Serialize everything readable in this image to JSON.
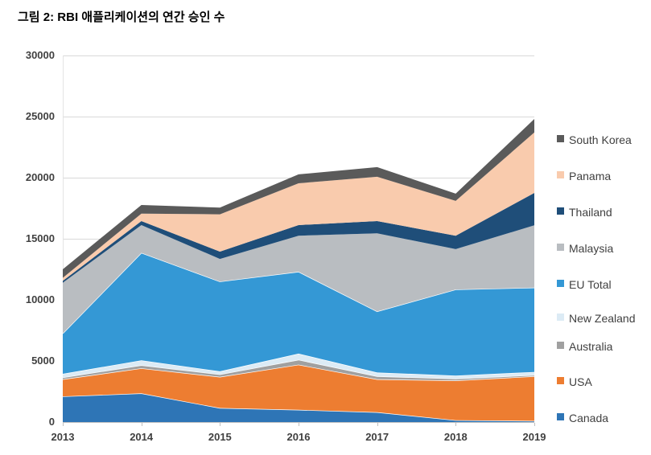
{
  "title": "그림 2: RBI 애플리케이션의 연간 승인 수",
  "chart_data": {
    "type": "area",
    "stacked": true,
    "title": "그림 2: RBI 애플리케이션의 연간 승인 수",
    "x": [
      "2013",
      "2014",
      "2015",
      "2016",
      "2017",
      "2018",
      "2019"
    ],
    "xlabel": "",
    "ylabel": "",
    "ylim": [
      0,
      30000
    ],
    "ytick_step": 5000,
    "yticks": [
      "0",
      "5000",
      "10000",
      "15000",
      "20000",
      "25000",
      "30000"
    ],
    "grid": "horizontal",
    "legend_position": "right",
    "stacking_order": "series listed bottom-to-top; legend shown top-to-bottom in reverse",
    "series": [
      {
        "name": "Canada",
        "color": "#2e75b6",
        "values": [
          2100,
          2350,
          1150,
          1000,
          800,
          150,
          100
        ]
      },
      {
        "name": "USA",
        "color": "#ed7d31",
        "values": [
          1400,
          2050,
          2550,
          3700,
          2700,
          3250,
          3650
        ]
      },
      {
        "name": "Australia",
        "color": "#a0a0a0",
        "values": [
          150,
          250,
          200,
          400,
          250,
          150,
          100
        ]
      },
      {
        "name": "New Zealand",
        "color": "#dcebf5",
        "values": [
          300,
          400,
          250,
          500,
          300,
          250,
          250
        ]
      },
      {
        "name": "EU Total",
        "color": "#3498d5",
        "values": [
          3300,
          8800,
          7350,
          6700,
          5000,
          7050,
          6900
        ]
      },
      {
        "name": "Malaysia",
        "color": "#b9bdc1",
        "values": [
          4150,
          2270,
          1850,
          2950,
          6400,
          3300,
          5100
        ]
      },
      {
        "name": "Thailand",
        "color": "#1f4e79",
        "values": [
          150,
          330,
          600,
          870,
          1000,
          1100,
          2650
        ]
      },
      {
        "name": "Panama",
        "color": "#f9cbad",
        "values": [
          250,
          610,
          3050,
          3420,
          3620,
          2850,
          4950
        ]
      },
      {
        "name": "South Korea",
        "color": "#5a5a5a",
        "values": [
          700,
          700,
          550,
          730,
          790,
          590,
          1100
        ]
      }
    ]
  }
}
